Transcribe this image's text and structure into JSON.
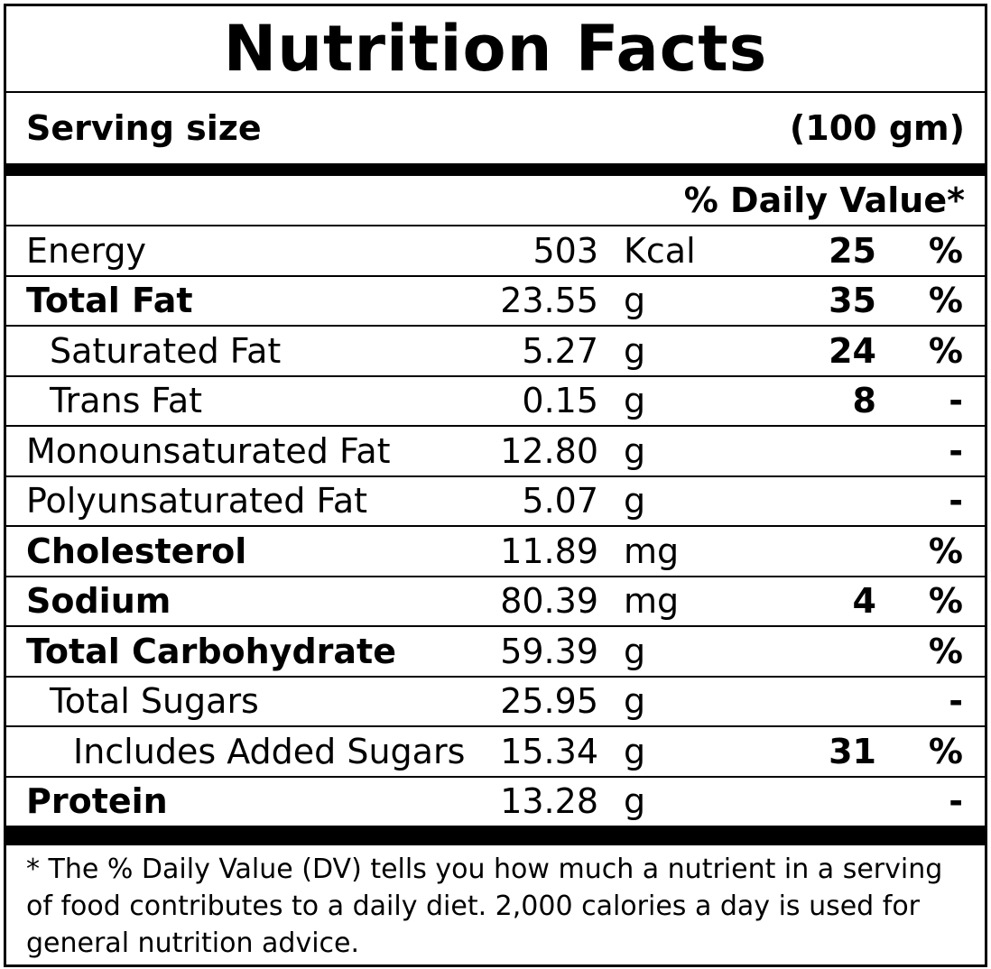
{
  "title": "Nutrition Facts",
  "serving": {
    "label": "Serving size",
    "value": "(100 gm)"
  },
  "dv_header": "% Daily Value*",
  "rows": [
    {
      "name": "Energy",
      "amount": "503",
      "unit": "Kcal",
      "dv": "25",
      "dv_symbol": "%"
    },
    {
      "name": "Total Fat",
      "amount": "23.55",
      "unit": "g",
      "dv": "35",
      "dv_symbol": "%"
    },
    {
      "name": "Saturated Fat",
      "amount": "5.27",
      "unit": "g",
      "dv": "24",
      "dv_symbol": "%"
    },
    {
      "name": "Trans Fat",
      "amount": "0.15",
      "unit": "g",
      "dv": "8",
      "dv_symbol": "-"
    },
    {
      "name": "Monounsaturated Fat",
      "amount": "12.80",
      "unit": "g",
      "dv": "",
      "dv_symbol": "-"
    },
    {
      "name": "Polyunsaturated Fat",
      "amount": "5.07",
      "unit": "g",
      "dv": "",
      "dv_symbol": "-"
    },
    {
      "name": "Cholesterol",
      "amount": "11.89",
      "unit": "mg",
      "dv": "",
      "dv_symbol": "%"
    },
    {
      "name": "Sodium",
      "amount": "80.39",
      "unit": "mg",
      "dv": "4",
      "dv_symbol": "%"
    },
    {
      "name": "Total Carbohydrate",
      "amount": "59.39",
      "unit": "g",
      "dv": "",
      "dv_symbol": "%"
    },
    {
      "name": "Total Sugars",
      "amount": "25.95",
      "unit": "g",
      "dv": "",
      "dv_symbol": "-"
    },
    {
      "name": "Includes Added Sugars",
      "amount": "15.34",
      "unit": "g",
      "dv": "31",
      "dv_symbol": "%"
    },
    {
      "name": "Protein",
      "amount": "13.28",
      "unit": "g",
      "dv": "",
      "dv_symbol": "-"
    }
  ],
  "footnote": "* The % Daily Value (DV) tells you how much a nutrient in a serving of food contributes to a daily diet. 2,000 calories a day is used for general nutrition advice."
}
